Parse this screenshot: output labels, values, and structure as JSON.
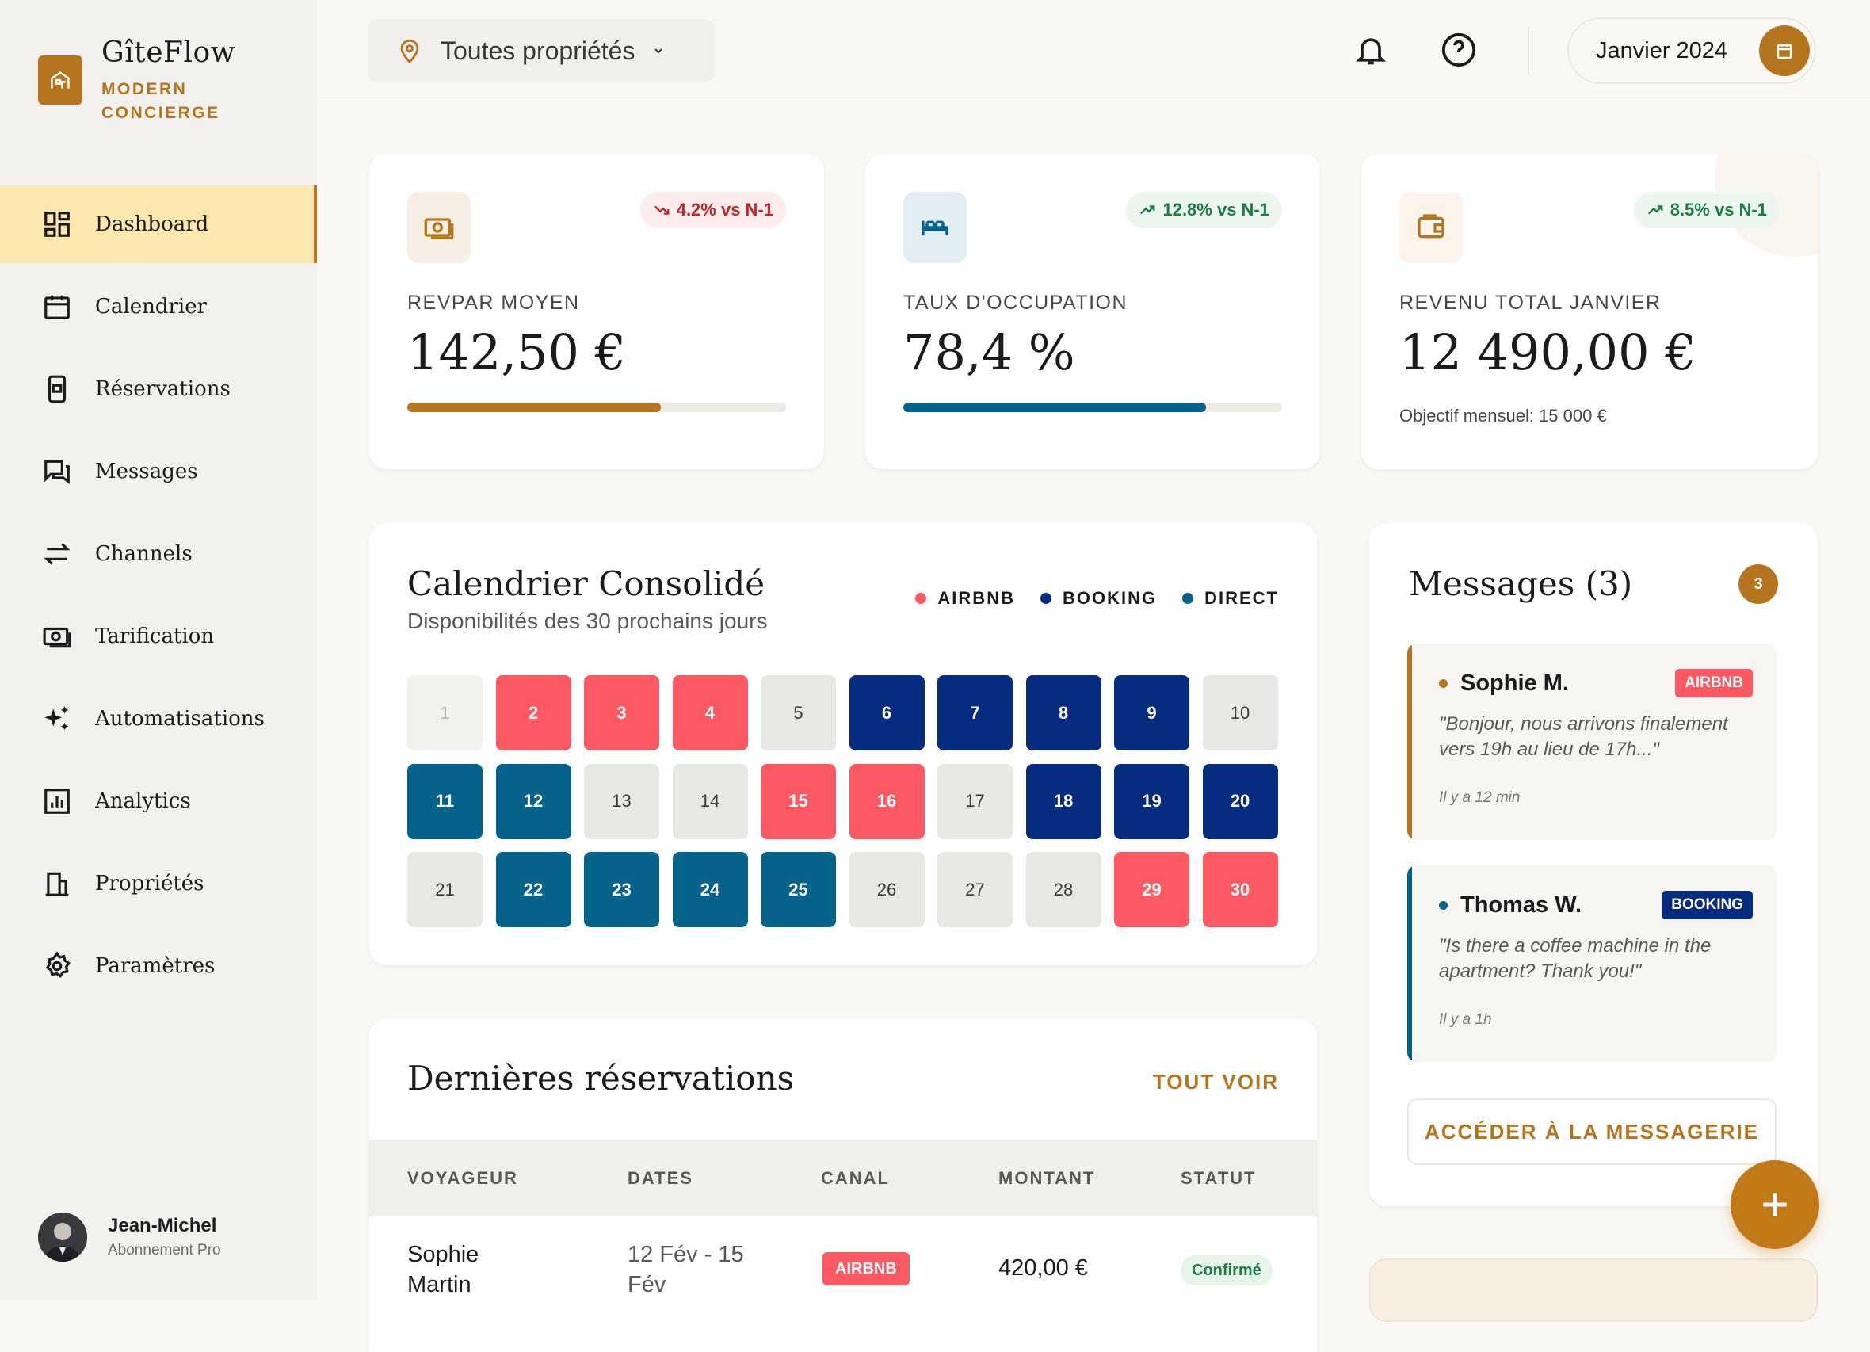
{
  "brand": {
    "name": "GîteFlow",
    "tagline": "MODERN CONCIERGE"
  },
  "nav": [
    {
      "label": "Dashboard",
      "icon": "dashboard-icon",
      "active": true
    },
    {
      "label": "Calendrier",
      "icon": "calendar-icon"
    },
    {
      "label": "Réservations",
      "icon": "reservations-icon"
    },
    {
      "label": "Messages",
      "icon": "messages-icon"
    },
    {
      "label": "Channels",
      "icon": "channels-icon"
    },
    {
      "label": "Tarification",
      "icon": "pricing-icon"
    },
    {
      "label": "Automatisations",
      "icon": "automation-icon"
    },
    {
      "label": "Analytics",
      "icon": "analytics-icon"
    },
    {
      "label": "Propriétés",
      "icon": "properties-icon"
    },
    {
      "label": "Paramètres",
      "icon": "settings-icon"
    }
  ],
  "user": {
    "name": "Jean-Michel",
    "plan": "Abonnement Pro"
  },
  "topbar": {
    "property_select": "Toutes propriétés",
    "month": "Janvier 2024"
  },
  "kpis": [
    {
      "label": "REVPAR MOYEN",
      "value": "142,50 €",
      "trend": "4.2% vs N-1",
      "trend_dir": "down",
      "progress": 0.67,
      "bar_color": "#b5751f"
    },
    {
      "label": "TAUX D'OCCUPATION",
      "value": "78,4 %",
      "trend": "12.8% vs N-1",
      "trend_dir": "up",
      "progress": 0.8,
      "bar_color": "#05628a"
    },
    {
      "label": "REVENU TOTAL JANVIER",
      "value": "12 490,00 €",
      "trend": "8.5% vs N-1",
      "trend_dir": "up",
      "note": "Objectif mensuel: 15 000 €"
    }
  ],
  "calendar": {
    "title": "Calendrier Consolidé",
    "subtitle": "Disponibilités des 30 prochains jours",
    "legend": [
      {
        "label": "AIRBNB",
        "color": "#fb5a63"
      },
      {
        "label": "BOOKING",
        "color": "#062c80"
      },
      {
        "label": "DIRECT",
        "color": "#05628a"
      }
    ],
    "days": [
      {
        "d": "1",
        "s": "past"
      },
      {
        "d": "2",
        "s": "airbnb"
      },
      {
        "d": "3",
        "s": "airbnb"
      },
      {
        "d": "4",
        "s": "airbnb"
      },
      {
        "d": "5",
        "s": "free"
      },
      {
        "d": "6",
        "s": "booking"
      },
      {
        "d": "7",
        "s": "booking"
      },
      {
        "d": "8",
        "s": "booking"
      },
      {
        "d": "9",
        "s": "booking"
      },
      {
        "d": "10",
        "s": "free"
      },
      {
        "d": "11",
        "s": "direct"
      },
      {
        "d": "12",
        "s": "direct"
      },
      {
        "d": "13",
        "s": "free"
      },
      {
        "d": "14",
        "s": "free"
      },
      {
        "d": "15",
        "s": "airbnb"
      },
      {
        "d": "16",
        "s": "airbnb"
      },
      {
        "d": "17",
        "s": "free"
      },
      {
        "d": "18",
        "s": "booking"
      },
      {
        "d": "19",
        "s": "booking"
      },
      {
        "d": "20",
        "s": "booking"
      },
      {
        "d": "21",
        "s": "free"
      },
      {
        "d": "22",
        "s": "direct"
      },
      {
        "d": "23",
        "s": "direct"
      },
      {
        "d": "24",
        "s": "direct"
      },
      {
        "d": "25",
        "s": "direct"
      },
      {
        "d": "26",
        "s": "free"
      },
      {
        "d": "27",
        "s": "free"
      },
      {
        "d": "28",
        "s": "free"
      },
      {
        "d": "29",
        "s": "airbnb"
      },
      {
        "d": "30",
        "s": "airbnb"
      }
    ]
  },
  "reservations": {
    "title": "Dernières réservations",
    "see_all": "TOUT VOIR",
    "columns": [
      "VOYAGEUR",
      "DATES",
      "CANAL",
      "MONTANT",
      "STATUT"
    ],
    "rows": [
      {
        "guest_first": "Sophie",
        "guest_last": "Martin",
        "dates_1": "12 Fév - 15",
        "dates_2": "Fév",
        "channel": "AIRBNB",
        "amount": "420,00 €",
        "status": "Confirmé"
      }
    ]
  },
  "messages": {
    "title": "Messages (3)",
    "count": "3",
    "items": [
      {
        "sender": "Sophie M.",
        "channel": "AIRBNB",
        "channel_color": "#fb5a63",
        "accent": "#b5751f",
        "text": "\"Bonjour, nous arrivons finalement vers 19h au lieu de 17h...\"",
        "time": "Il y a 12 min"
      },
      {
        "sender": "Thomas W.",
        "channel": "BOOKING",
        "channel_color": "#062c80",
        "accent": "#05628a",
        "text": "\"Is there a coffee machine in the apartment? Thank you!\"",
        "time": "Il y a 1h"
      }
    ],
    "cta": "ACCÉDER À LA MESSAGERIE"
  }
}
